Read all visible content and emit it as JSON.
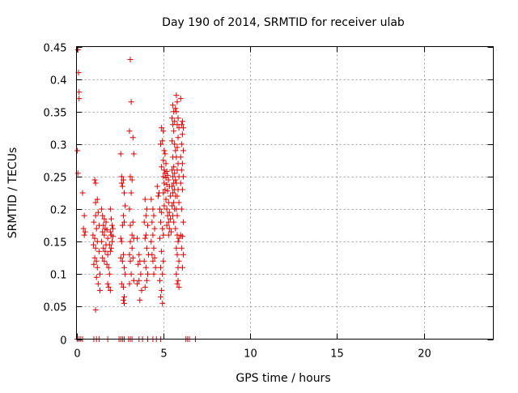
{
  "chart_data": {
    "type": "scatter",
    "title": "Day 190 of 2014, SRMTID for receiver ulab",
    "xlabel": "GPS time / hours",
    "ylabel": "SRMTID / TECUs",
    "xlim": [
      0,
      24
    ],
    "ylim": [
      0,
      0.45
    ],
    "xticks": [
      0,
      5,
      10,
      15,
      20
    ],
    "xtick_labels": [
      "0",
      "5",
      "10",
      "15",
      "20"
    ],
    "yticks": [
      0,
      0.05,
      0.1,
      0.15,
      0.2,
      0.25,
      0.3,
      0.35,
      0.4,
      0.45
    ],
    "ytick_labels": [
      "0",
      "0.05",
      "0.1",
      "0.15",
      "0.2",
      "0.25",
      "0.3",
      "0.35",
      "0.4",
      "0.45"
    ],
    "grid": true,
    "marker": "plus",
    "color": "#e00000",
    "series": [
      {
        "name": "SRMTID",
        "points": [
          [
            0.08,
            0.445
          ],
          [
            0.12,
            0.41
          ],
          [
            0.15,
            0.38
          ],
          [
            0.15,
            0.37
          ],
          [
            0.05,
            0.29
          ],
          [
            0.08,
            0.255
          ],
          [
            0.35,
            0.225
          ],
          [
            0.45,
            0.19
          ],
          [
            0.4,
            0.17
          ],
          [
            0.5,
            0.165
          ],
          [
            0.45,
            0.16
          ],
          [
            1.05,
            0.245
          ],
          [
            1.1,
            0.24
          ],
          [
            1.2,
            0.215
          ],
          [
            1.1,
            0.21
          ],
          [
            1.25,
            0.195
          ],
          [
            1.1,
            0.19
          ],
          [
            1.0,
            0.18
          ],
          [
            1.3,
            0.175
          ],
          [
            1.15,
            0.17
          ],
          [
            0.95,
            0.16
          ],
          [
            1.05,
            0.155
          ],
          [
            1.2,
            0.15
          ],
          [
            0.98,
            0.145
          ],
          [
            1.1,
            0.14
          ],
          [
            1.3,
            0.135
          ],
          [
            1.05,
            0.125
          ],
          [
            1.15,
            0.12
          ],
          [
            1.0,
            0.115
          ],
          [
            1.2,
            0.11
          ],
          [
            1.35,
            0.1
          ],
          [
            1.25,
            0.085
          ],
          [
            1.35,
            0.075
          ],
          [
            1.1,
            0.045
          ],
          [
            1.15,
            0.095
          ],
          [
            1.45,
            0.2
          ],
          [
            1.5,
            0.19
          ],
          [
            1.6,
            0.185
          ],
          [
            1.7,
            0.18
          ],
          [
            1.55,
            0.175
          ],
          [
            1.65,
            0.17
          ],
          [
            1.75,
            0.168
          ],
          [
            1.5,
            0.165
          ],
          [
            1.6,
            0.16
          ],
          [
            1.8,
            0.155
          ],
          [
            1.45,
            0.15
          ],
          [
            1.7,
            0.145
          ],
          [
            1.55,
            0.14
          ],
          [
            1.65,
            0.135
          ],
          [
            1.8,
            0.13
          ],
          [
            1.5,
            0.125
          ],
          [
            1.6,
            0.12
          ],
          [
            1.75,
            0.115
          ],
          [
            1.85,
            0.11
          ],
          [
            1.9,
            0.1
          ],
          [
            1.8,
            0.085
          ],
          [
            1.85,
            0.08
          ],
          [
            1.95,
            0.075
          ],
          [
            1.95,
            0.2
          ],
          [
            2.0,
            0.185
          ],
          [
            2.05,
            0.175
          ],
          [
            2.1,
            0.17
          ],
          [
            1.95,
            0.165
          ],
          [
            2.0,
            0.16
          ],
          [
            2.1,
            0.158
          ],
          [
            2.05,
            0.15
          ],
          [
            1.9,
            0.145
          ],
          [
            2.0,
            0.14
          ],
          [
            1.95,
            0.135
          ],
          [
            2.55,
            0.285
          ],
          [
            2.6,
            0.25
          ],
          [
            2.7,
            0.245
          ],
          [
            2.6,
            0.24
          ],
          [
            2.65,
            0.235
          ],
          [
            2.75,
            0.225
          ],
          [
            2.8,
            0.205
          ],
          [
            2.7,
            0.19
          ],
          [
            2.75,
            0.18
          ],
          [
            2.65,
            0.175
          ],
          [
            2.55,
            0.155
          ],
          [
            2.6,
            0.15
          ],
          [
            2.7,
            0.13
          ],
          [
            2.55,
            0.125
          ],
          [
            2.65,
            0.12
          ],
          [
            2.75,
            0.11
          ],
          [
            2.8,
            0.1
          ],
          [
            2.6,
            0.085
          ],
          [
            2.7,
            0.08
          ],
          [
            2.75,
            0.065
          ],
          [
            2.7,
            0.06
          ],
          [
            2.75,
            0.055
          ],
          [
            3.1,
            0.43
          ],
          [
            3.15,
            0.365
          ],
          [
            3.05,
            0.32
          ],
          [
            3.25,
            0.31
          ],
          [
            3.3,
            0.285
          ],
          [
            3.1,
            0.25
          ],
          [
            3.2,
            0.245
          ],
          [
            3.15,
            0.225
          ],
          [
            3.05,
            0.2
          ],
          [
            3.25,
            0.18
          ],
          [
            3.1,
            0.175
          ],
          [
            3.2,
            0.16
          ],
          [
            3.3,
            0.155
          ],
          [
            3.1,
            0.15
          ],
          [
            3.2,
            0.14
          ],
          [
            3.05,
            0.13
          ],
          [
            3.25,
            0.125
          ],
          [
            3.1,
            0.12
          ],
          [
            3.15,
            0.1
          ],
          [
            3.3,
            0.09
          ],
          [
            3.05,
            0.085
          ],
          [
            3.5,
            0.155
          ],
          [
            3.6,
            0.13
          ],
          [
            3.65,
            0.12
          ],
          [
            3.55,
            0.115
          ],
          [
            3.7,
            0.1
          ],
          [
            3.6,
            0.09
          ],
          [
            3.5,
            0.085
          ],
          [
            3.75,
            0.075
          ],
          [
            3.65,
            0.06
          ],
          [
            3.95,
            0.215
          ],
          [
            4.05,
            0.2
          ],
          [
            4.0,
            0.19
          ],
          [
            3.9,
            0.18
          ],
          [
            4.1,
            0.175
          ],
          [
            4.0,
            0.16
          ],
          [
            3.95,
            0.155
          ],
          [
            4.05,
            0.14
          ],
          [
            4.15,
            0.13
          ],
          [
            3.9,
            0.12
          ],
          [
            4.0,
            0.11
          ],
          [
            4.1,
            0.1
          ],
          [
            4.05,
            0.09
          ],
          [
            3.95,
            0.08
          ],
          [
            4.3,
            0.215
          ],
          [
            4.4,
            0.2
          ],
          [
            4.45,
            0.19
          ],
          [
            4.35,
            0.18
          ],
          [
            4.5,
            0.17
          ],
          [
            4.4,
            0.16
          ],
          [
            4.3,
            0.15
          ],
          [
            4.45,
            0.14
          ],
          [
            4.35,
            0.13
          ],
          [
            4.5,
            0.125
          ],
          [
            4.4,
            0.12
          ],
          [
            4.55,
            0.11
          ],
          [
            4.45,
            0.1
          ],
          [
            4.65,
            0.235
          ],
          [
            4.75,
            0.225
          ],
          [
            4.7,
            0.22
          ],
          [
            4.8,
            0.2
          ],
          [
            4.9,
            0.195
          ],
          [
            4.85,
            0.18
          ],
          [
            4.95,
            0.17
          ],
          [
            5.0,
            0.16
          ],
          [
            4.8,
            0.155
          ],
          [
            4.9,
            0.135
          ],
          [
            5.0,
            0.12
          ],
          [
            4.85,
            0.11
          ],
          [
            4.95,
            0.1
          ],
          [
            4.8,
            0.09
          ],
          [
            4.9,
            0.075
          ],
          [
            4.85,
            0.065
          ],
          [
            4.95,
            0.055
          ],
          [
            4.9,
            0.325
          ],
          [
            5.0,
            0.32
          ],
          [
            4.95,
            0.305
          ],
          [
            4.85,
            0.3
          ],
          [
            5.05,
            0.29
          ],
          [
            5.1,
            0.285
          ],
          [
            5.0,
            0.275
          ],
          [
            5.15,
            0.27
          ],
          [
            4.9,
            0.265
          ],
          [
            5.05,
            0.26
          ],
          [
            5.2,
            0.258
          ],
          [
            5.1,
            0.255
          ],
          [
            5.25,
            0.252
          ],
          [
            5.0,
            0.25
          ],
          [
            5.15,
            0.248
          ],
          [
            5.3,
            0.245
          ],
          [
            5.05,
            0.24
          ],
          [
            5.2,
            0.238
          ],
          [
            5.35,
            0.235
          ],
          [
            5.1,
            0.23
          ],
          [
            5.25,
            0.228
          ],
          [
            5.0,
            0.225
          ],
          [
            5.4,
            0.22
          ],
          [
            5.15,
            0.215
          ],
          [
            5.3,
            0.21
          ],
          [
            5.05,
            0.205
          ],
          [
            5.2,
            0.2
          ],
          [
            5.35,
            0.195
          ],
          [
            5.25,
            0.19
          ],
          [
            5.4,
            0.185
          ],
          [
            5.3,
            0.18
          ],
          [
            5.2,
            0.175
          ],
          [
            5.35,
            0.17
          ],
          [
            5.45,
            0.165
          ],
          [
            5.3,
            0.16
          ],
          [
            5.55,
            0.36
          ],
          [
            5.6,
            0.35
          ],
          [
            5.5,
            0.34
          ],
          [
            5.65,
            0.335
          ],
          [
            5.55,
            0.33
          ],
          [
            5.6,
            0.32
          ],
          [
            5.5,
            0.305
          ],
          [
            5.65,
            0.3
          ],
          [
            5.7,
            0.29
          ],
          [
            5.55,
            0.28
          ],
          [
            5.6,
            0.265
          ],
          [
            5.5,
            0.26
          ],
          [
            5.65,
            0.255
          ],
          [
            5.55,
            0.25
          ],
          [
            5.7,
            0.245
          ],
          [
            5.6,
            0.24
          ],
          [
            5.5,
            0.235
          ],
          [
            5.65,
            0.23
          ],
          [
            5.55,
            0.225
          ],
          [
            5.7,
            0.22
          ],
          [
            5.6,
            0.21
          ],
          [
            5.5,
            0.205
          ],
          [
            5.65,
            0.2
          ],
          [
            5.55,
            0.19
          ],
          [
            5.6,
            0.18
          ],
          [
            5.7,
            0.17
          ],
          [
            5.75,
            0.375
          ],
          [
            5.8,
            0.365
          ],
          [
            5.7,
            0.355
          ],
          [
            5.75,
            0.35
          ],
          [
            5.85,
            0.34
          ],
          [
            5.8,
            0.33
          ],
          [
            5.9,
            0.325
          ],
          [
            5.85,
            0.31
          ],
          [
            5.8,
            0.295
          ],
          [
            5.75,
            0.28
          ],
          [
            5.85,
            0.27
          ],
          [
            5.8,
            0.26
          ],
          [
            5.9,
            0.25
          ],
          [
            5.75,
            0.24
          ],
          [
            5.85,
            0.23
          ],
          [
            5.8,
            0.22
          ],
          [
            5.9,
            0.21
          ],
          [
            5.75,
            0.2
          ],
          [
            5.8,
            0.19
          ],
          [
            5.8,
            0.16
          ],
          [
            5.9,
            0.155
          ],
          [
            5.85,
            0.15
          ],
          [
            5.75,
            0.14
          ],
          [
            5.8,
            0.13
          ],
          [
            5.9,
            0.12
          ],
          [
            5.85,
            0.11
          ],
          [
            5.75,
            0.1
          ],
          [
            5.85,
            0.09
          ],
          [
            5.8,
            0.085
          ],
          [
            5.9,
            0.08
          ],
          [
            6.0,
            0.37
          ],
          [
            6.1,
            0.335
          ],
          [
            6.05,
            0.33
          ],
          [
            6.15,
            0.325
          ],
          [
            6.1,
            0.315
          ],
          [
            6.05,
            0.3
          ],
          [
            6.15,
            0.29
          ],
          [
            6.0,
            0.28
          ],
          [
            6.1,
            0.27
          ],
          [
            6.05,
            0.26
          ],
          [
            6.15,
            0.25
          ],
          [
            6.0,
            0.24
          ],
          [
            6.1,
            0.23
          ],
          [
            6.05,
            0.2
          ],
          [
            6.15,
            0.18
          ],
          [
            6.0,
            0.16
          ],
          [
            6.1,
            0.158
          ],
          [
            6.05,
            0.14
          ],
          [
            6.15,
            0.13
          ],
          [
            6.1,
            0.11
          ],
          [
            0.05,
            0
          ],
          [
            0.15,
            0
          ],
          [
            0.25,
            0
          ],
          [
            0.35,
            0
          ],
          [
            1.0,
            0
          ],
          [
            1.15,
            0
          ],
          [
            1.3,
            0
          ],
          [
            1.8,
            0
          ],
          [
            2.45,
            0
          ],
          [
            2.55,
            0
          ],
          [
            2.65,
            0
          ],
          [
            2.75,
            0
          ],
          [
            3.0,
            0
          ],
          [
            3.1,
            0
          ],
          [
            3.2,
            0
          ],
          [
            3.6,
            0
          ],
          [
            3.8,
            0
          ],
          [
            4.1,
            0
          ],
          [
            4.4,
            0
          ],
          [
            4.6,
            0
          ],
          [
            4.85,
            0
          ],
          [
            6.3,
            0
          ],
          [
            6.4,
            0
          ],
          [
            6.5,
            0
          ],
          [
            6.85,
            0
          ]
        ]
      }
    ]
  }
}
